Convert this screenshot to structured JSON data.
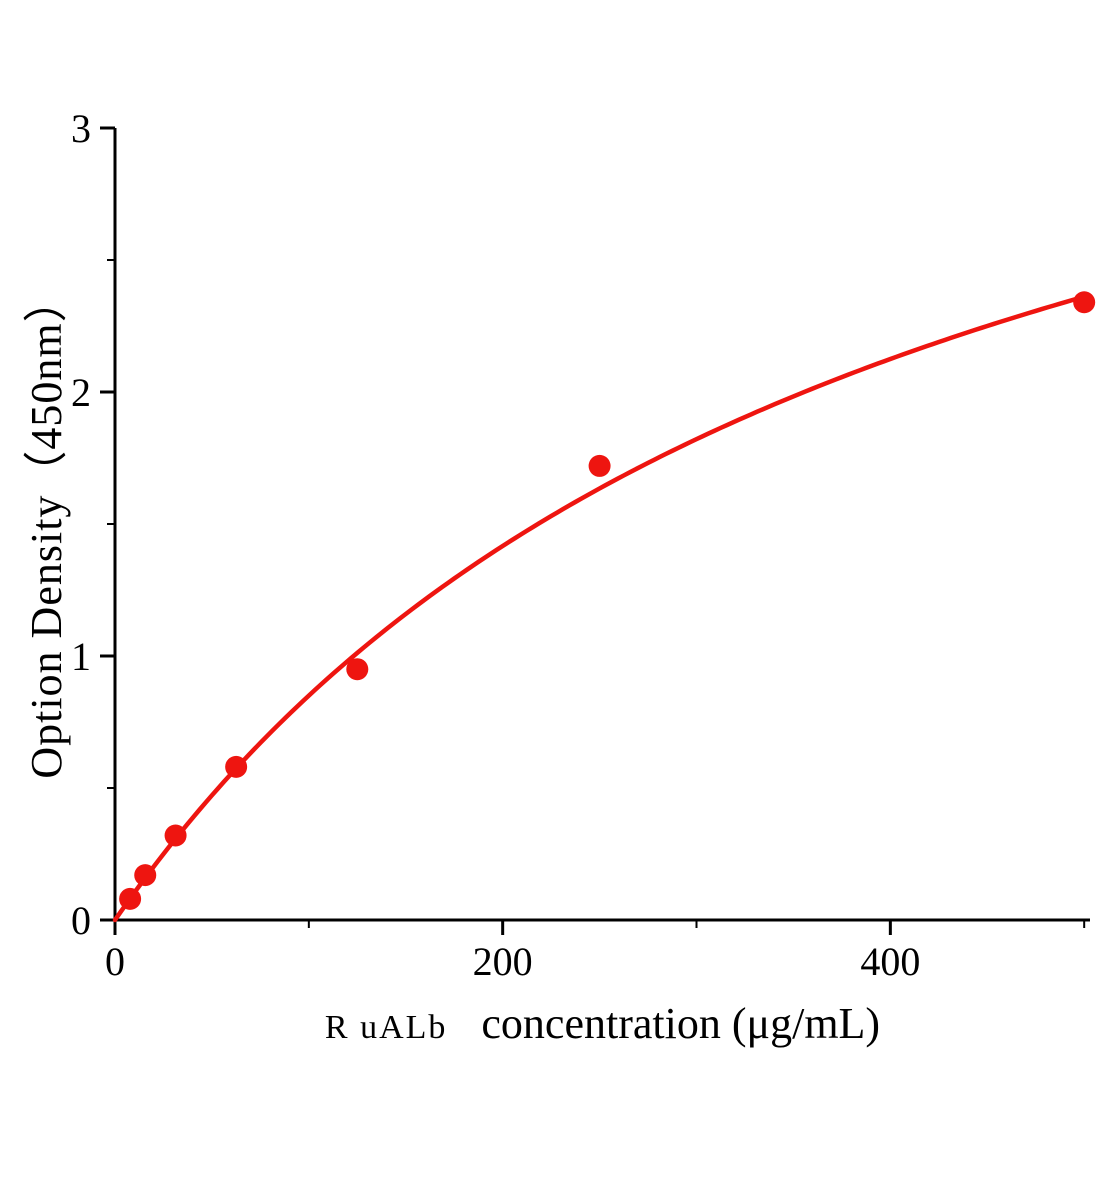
{
  "chart_data": {
    "type": "scatter",
    "title": "",
    "xlabel_prefix": "R uALb",
    "xlabel": "concentration (μg/mL)",
    "ylabel": "Option Density（450nm）",
    "x": [
      7.8,
      15.6,
      31.25,
      62.5,
      125,
      250,
      500
    ],
    "y": [
      0.08,
      0.17,
      0.32,
      0.58,
      0.95,
      1.72,
      2.34
    ],
    "xlim": [
      0,
      503
    ],
    "ylim": [
      0,
      3
    ],
    "x_ticks": [
      0,
      200,
      400
    ],
    "x_tick_labels": [
      "0",
      "200",
      "400"
    ],
    "x_minor_ticks": [
      100,
      300,
      500
    ],
    "y_ticks": [
      0,
      1,
      2,
      3
    ],
    "y_tick_labels": [
      "0",
      "1",
      "2",
      "3"
    ],
    "y_minor_ticks": [
      0.5,
      1.5,
      2.5
    ],
    "curve_fit": {
      "type": "saturation",
      "formula": "y = a*x/(b+x)",
      "a": 4.25,
      "b": 400
    },
    "grid": false,
    "legend": "none",
    "point_color": "#ee1510",
    "line_color": "#ee1510",
    "axis_color": "#000000"
  }
}
